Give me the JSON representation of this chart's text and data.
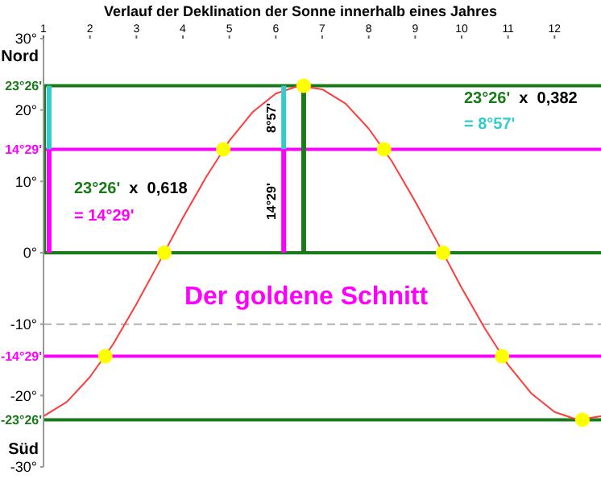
{
  "chart_data": {
    "type": "line",
    "title": "Verlauf der Deklination der Sonne innerhalb eines Jahres",
    "xlim": [
      1,
      13
    ],
    "xticks": [
      1,
      2,
      3,
      4,
      5,
      6,
      7,
      8,
      9,
      10,
      11,
      12
    ],
    "ylim": [
      -30,
      30
    ],
    "yticks": [
      {
        "value": 30,
        "label": "30°"
      },
      {
        "value": 20,
        "label": "20°"
      },
      {
        "value": 10,
        "label": "10°"
      },
      {
        "value": 0,
        "label": "0°"
      },
      {
        "value": -10,
        "label": "-10°"
      },
      {
        "value": -20,
        "label": "-20°"
      },
      {
        "value": -30,
        "label": "-30°"
      }
    ],
    "series": [
      {
        "color": "#ff3b3b",
        "x": [
          1,
          1.5,
          2,
          2.5,
          3,
          3.5,
          4,
          4.5,
          5,
          5.5,
          6,
          6.5,
          7,
          7.5,
          8,
          8.5,
          9,
          9.5,
          10,
          10.5,
          11,
          11.5,
          12,
          12.5,
          13
        ],
        "values": [
          -22.9,
          -20.9,
          -17.4,
          -12.8,
          -7.2,
          -1.2,
          4.9,
          10.6,
          15.7,
          19.7,
          22.3,
          23.4,
          22.9,
          20.9,
          17.4,
          12.8,
          7.2,
          1.2,
          -4.9,
          -10.6,
          -15.7,
          -19.7,
          -22.3,
          -23.4,
          -22.9
        ]
      },
      {
        "type": "scatter",
        "color": "#ffff00",
        "marker": "circle",
        "x": [
          2.33,
          3.6,
          4.87,
          6.6,
          8.33,
          9.6,
          10.87,
          12.6
        ],
        "values": [
          -14.5,
          0,
          14.5,
          23.4,
          14.5,
          0,
          -14.5,
          -23.4
        ]
      },
      {
        "color": "#1a7a1a",
        "x": [
          1,
          1
        ],
        "values": [
          0,
          23.4
        ]
      },
      {
        "color": "#33cccc",
        "x": [
          1.12,
          1.12
        ],
        "values": [
          14.5,
          23.4
        ]
      },
      {
        "color": "#ff00ff",
        "x": [
          1.12,
          1.12
        ],
        "values": [
          0,
          14.5
        ]
      },
      {
        "color": "#33cccc",
        "x": [
          6.17,
          6.17
        ],
        "values": [
          14.5,
          23.4
        ]
      },
      {
        "color": "#ff00ff",
        "x": [
          6.17,
          6.17
        ],
        "values": [
          0,
          14.5
        ]
      },
      {
        "color": "#1a7a1a",
        "x": [
          6.6,
          6.6
        ],
        "values": [
          0,
          23.4
        ]
      }
    ],
    "ref_lines": [
      {
        "axis": "y",
        "value": 23.4,
        "label": "23°26'",
        "color": "#1a7a1a"
      },
      {
        "axis": "y",
        "value": 14.5,
        "label": "14°29'",
        "color": "#ff00ff"
      },
      {
        "axis": "y",
        "value": 0,
        "color": "#1a7a1a"
      },
      {
        "axis": "y",
        "value": -10,
        "color": "#b0b0b0",
        "line_style": "dashed"
      },
      {
        "axis": "y",
        "value": -14.5,
        "label": "-14°29'",
        "color": "#ff00ff"
      },
      {
        "axis": "y",
        "value": -23.4,
        "label": "-23°26'",
        "color": "#1a7a1a"
      }
    ],
    "annotations": [
      "Nord",
      "Süd",
      "23°26'  x  0,618",
      "= 14°29'",
      "23°26'  x  0,382",
      "= 8°57'",
      "Der goldene Schnitt",
      {
        "text": "8°57'",
        "x": 6.17,
        "y": 18.9
      },
      {
        "text": "14°29'",
        "x": 6.17,
        "y": 7.2
      }
    ]
  }
}
